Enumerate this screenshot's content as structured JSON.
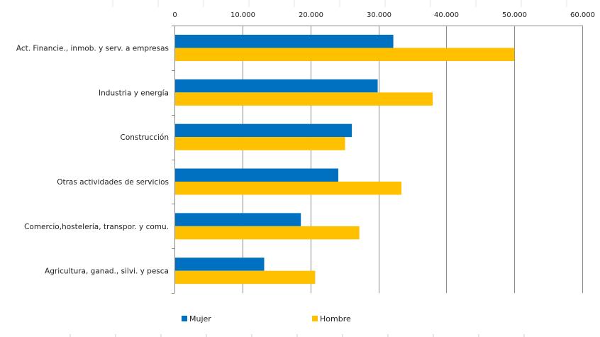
{
  "chart_data": {
    "type": "bar",
    "orientation": "horizontal",
    "title": "",
    "xlabel": "",
    "ylabel": "",
    "xlim": [
      0,
      60000
    ],
    "x_ticks": [
      0,
      10000,
      20000,
      30000,
      40000,
      50000,
      60000
    ],
    "x_tick_labels": [
      "0",
      "10.000",
      "20.000",
      "30.000",
      "40.000",
      "50.000",
      "60.000"
    ],
    "x_axis_position": "top",
    "grid": true,
    "legend_position": "bottom",
    "categories": [
      "Act. Financie., inmob. y serv. a empresas",
      "Industria y energía",
      "Construcción",
      "Otras actividades de servicios",
      "Comercio,hostelería, transpor. y comu.",
      "Agricultura, ganad., silvi. y pesca"
    ],
    "series": [
      {
        "name": "Mujer",
        "color": "#0070C0",
        "values": [
          32200,
          29900,
          26100,
          24100,
          18600,
          13200
        ]
      },
      {
        "name": "Hombre",
        "color": "#FFC000",
        "values": [
          50000,
          38000,
          25100,
          33400,
          27200,
          20700
        ]
      }
    ]
  }
}
